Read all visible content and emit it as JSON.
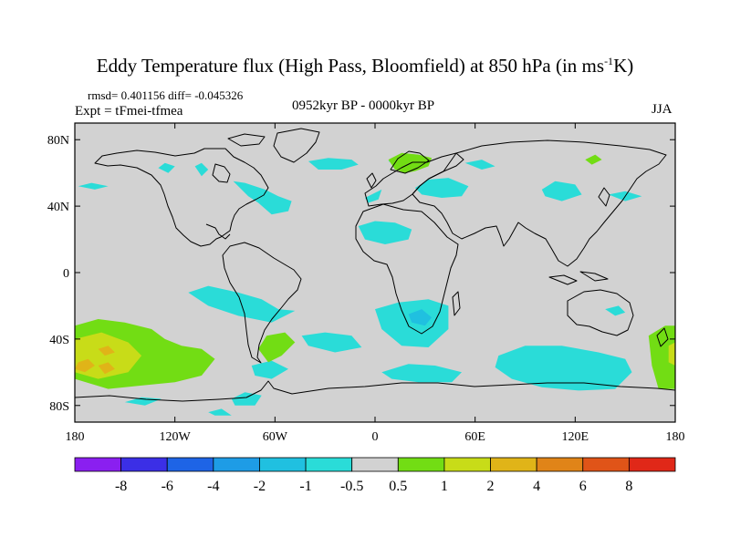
{
  "title": {
    "main_prefix": "Eddy Temperature flux (High Pass, Bloomfield) at 850 hPa (in ms",
    "superscript": "-1",
    "main_suffix": "K)"
  },
  "subtitle": {
    "stats": "rmsd= 0.401156 diff= -0.045326",
    "experiment": "Expt = tFmei-tfmea",
    "period": "0952kyr BP - 0000kyr BP",
    "season": "JJA"
  },
  "map": {
    "lon_range": [
      -180,
      180
    ],
    "lat_range": [
      -90,
      90
    ],
    "lat_ticks": [
      {
        "value": 80,
        "label": "80N"
      },
      {
        "value": 40,
        "label": "40N"
      },
      {
        "value": 0,
        "label": "0"
      },
      {
        "value": -40,
        "label": "40S"
      },
      {
        "value": -80,
        "label": "80S"
      }
    ],
    "lon_ticks": [
      {
        "value": -180,
        "label": "180"
      },
      {
        "value": -120,
        "label": "120W"
      },
      {
        "value": -60,
        "label": "60W"
      },
      {
        "value": 0,
        "label": "0"
      },
      {
        "value": 60,
        "label": "60E"
      },
      {
        "value": 120,
        "label": "120E"
      },
      {
        "value": 180,
        "label": "180"
      }
    ],
    "background_color": "#d2d2d2"
  },
  "colorbar": {
    "levels": [
      "-8",
      "-6",
      "-4",
      "-2",
      "-1",
      "-0.5",
      "0.5",
      "1",
      "2",
      "4",
      "6",
      "8"
    ],
    "colors": [
      "#8a1ff0",
      "#3b2fe6",
      "#1e64e6",
      "#1e9ce6",
      "#20c0e0",
      "#2adcd8",
      "#d2d2d2",
      "#72dd14",
      "#c8dc18",
      "#e0b418",
      "#e08418",
      "#e05418",
      "#e02818"
    ]
  },
  "regions": [
    {
      "level": "-1",
      "color": "#2adcd8",
      "pts": [
        [
          -178,
          52
        ],
        [
          -168,
          50
        ],
        [
          -160,
          52
        ],
        [
          -170,
          54
        ]
      ]
    },
    {
      "level": "-1",
      "color": "#2adcd8",
      "pts": [
        [
          -130,
          63
        ],
        [
          -124,
          60
        ],
        [
          -120,
          64
        ],
        [
          -126,
          66
        ]
      ]
    },
    {
      "level": "-1",
      "color": "#2adcd8",
      "pts": [
        [
          -108,
          64
        ],
        [
          -104,
          58
        ],
        [
          -100,
          62
        ],
        [
          -104,
          66
        ]
      ]
    },
    {
      "level": "-1",
      "color": "#2adcd8",
      "pts": [
        [
          -85,
          55
        ],
        [
          -76,
          46
        ],
        [
          -70,
          42
        ],
        [
          -62,
          35
        ],
        [
          -52,
          37
        ],
        [
          -50,
          43
        ],
        [
          -58,
          46
        ],
        [
          -66,
          50
        ],
        [
          -78,
          54
        ]
      ]
    },
    {
      "level": "-1",
      "color": "#2adcd8",
      "pts": [
        [
          -40,
          67
        ],
        [
          -28,
          69
        ],
        [
          -14,
          68
        ],
        [
          -10,
          65
        ],
        [
          -20,
          62
        ],
        [
          -34,
          62
        ]
      ]
    },
    {
      "level": "-1",
      "color": "#2adcd8",
      "pts": [
        [
          -6,
          45
        ],
        [
          0,
          48
        ],
        [
          4,
          50
        ],
        [
          2,
          44
        ],
        [
          -4,
          42
        ]
      ]
    },
    {
      "level": "-1",
      "color": "#2adcd8",
      "pts": [
        [
          -10,
          28
        ],
        [
          0,
          31
        ],
        [
          12,
          30
        ],
        [
          22,
          26
        ],
        [
          20,
          20
        ],
        [
          6,
          17
        ],
        [
          -6,
          20
        ]
      ]
    },
    {
      "level": "-1",
      "color": "#2adcd8",
      "pts": [
        [
          8,
          67
        ],
        [
          14,
          70
        ],
        [
          18,
          68
        ],
        [
          12,
          65
        ]
      ]
    },
    {
      "level": "-1",
      "color": "#2adcd8",
      "pts": [
        [
          24,
          51
        ],
        [
          32,
          56
        ],
        [
          44,
          57
        ],
        [
          56,
          52
        ],
        [
          52,
          46
        ],
        [
          40,
          45
        ],
        [
          28,
          47
        ]
      ]
    },
    {
      "level": "-1",
      "color": "#2adcd8",
      "pts": [
        [
          54,
          66
        ],
        [
          64,
          68
        ],
        [
          72,
          64
        ],
        [
          64,
          62
        ]
      ]
    },
    {
      "level": "-1",
      "color": "#2adcd8",
      "pts": [
        [
          100,
          50
        ],
        [
          108,
          55
        ],
        [
          120,
          53
        ],
        [
          124,
          47
        ],
        [
          112,
          43
        ],
        [
          102,
          46
        ]
      ]
    },
    {
      "level": "-1",
      "color": "#2adcd8",
      "pts": [
        [
          140,
          47
        ],
        [
          150,
          49
        ],
        [
          160,
          46
        ],
        [
          150,
          43
        ]
      ]
    },
    {
      "level": "-1",
      "color": "#2adcd8",
      "pts": [
        [
          -112,
          -12
        ],
        [
          -100,
          -8
        ],
        [
          -82,
          -12
        ],
        [
          -68,
          -16
        ],
        [
          -58,
          -22
        ],
        [
          -48,
          -23
        ],
        [
          -62,
          -30
        ],
        [
          -82,
          -26
        ],
        [
          -100,
          -20
        ]
      ]
    },
    {
      "level": "-1",
      "color": "#2adcd8",
      "pts": [
        [
          -44,
          -38
        ],
        [
          -30,
          -36
        ],
        [
          -14,
          -38
        ],
        [
          -8,
          -45
        ],
        [
          -24,
          -48
        ],
        [
          -40,
          -44
        ]
      ]
    },
    {
      "level": "-1",
      "color": "#2adcd8",
      "pts": [
        [
          0,
          -22
        ],
        [
          14,
          -18
        ],
        [
          32,
          -16
        ],
        [
          44,
          -20
        ],
        [
          44,
          -34
        ],
        [
          32,
          -45
        ],
        [
          16,
          -44
        ],
        [
          4,
          -34
        ]
      ]
    },
    {
      "level": "-1",
      "color": "#2adcd8",
      "pts": [
        [
          4,
          -60
        ],
        [
          20,
          -55
        ],
        [
          36,
          -56
        ],
        [
          52,
          -60
        ],
        [
          46,
          -66
        ],
        [
          26,
          -66
        ],
        [
          10,
          -64
        ]
      ]
    },
    {
      "level": "-1",
      "color": "#2adcd8",
      "pts": [
        [
          74,
          -50
        ],
        [
          90,
          -44
        ],
        [
          112,
          -44
        ],
        [
          134,
          -48
        ],
        [
          150,
          -52
        ],
        [
          154,
          -60
        ],
        [
          144,
          -70
        ],
        [
          122,
          -71
        ],
        [
          100,
          -69
        ],
        [
          82,
          -64
        ],
        [
          72,
          -57
        ]
      ]
    },
    {
      "level": "-1",
      "color": "#2adcd8",
      "pts": [
        [
          138,
          -22
        ],
        [
          146,
          -20
        ],
        [
          150,
          -24
        ],
        [
          144,
          -26
        ]
      ]
    },
    {
      "level": "-1",
      "color": "#2adcd8",
      "pts": [
        [
          -74,
          -56
        ],
        [
          -62,
          -53
        ],
        [
          -52,
          -58
        ],
        [
          -62,
          -64
        ],
        [
          -72,
          -62
        ]
      ]
    },
    {
      "level": "-1",
      "color": "#2adcd8",
      "pts": [
        [
          -86,
          -76
        ],
        [
          -78,
          -72
        ],
        [
          -68,
          -74
        ],
        [
          -72,
          -80
        ],
        [
          -84,
          -80
        ]
      ]
    },
    {
      "level": "-1",
      "color": "#2adcd8",
      "pts": [
        [
          -150,
          -78
        ],
        [
          -140,
          -75
        ],
        [
          -128,
          -76
        ],
        [
          -138,
          -80
        ]
      ]
    },
    {
      "level": "-1",
      "color": "#2adcd8",
      "pts": [
        [
          -100,
          -84
        ],
        [
          -92,
          -82
        ],
        [
          -86,
          -86
        ],
        [
          -96,
          -86
        ]
      ]
    },
    {
      "level": "-2",
      "color": "#20c0e0",
      "pts": [
        [
          20,
          -25
        ],
        [
          28,
          -22
        ],
        [
          34,
          -27
        ],
        [
          30,
          -32
        ],
        [
          22,
          -30
        ]
      ]
    },
    {
      "level": "1",
      "color": "#72dd14",
      "pts": [
        [
          8,
          68
        ],
        [
          16,
          72
        ],
        [
          26,
          71
        ],
        [
          34,
          69
        ],
        [
          32,
          64
        ],
        [
          24,
          61
        ],
        [
          18,
          60
        ],
        [
          12,
          62
        ]
      ]
    },
    {
      "level": "1",
      "color": "#72dd14",
      "pts": [
        [
          126,
          68
        ],
        [
          132,
          71
        ],
        [
          136,
          68
        ],
        [
          130,
          65
        ]
      ]
    },
    {
      "level": "1",
      "color": "#72dd14",
      "pts": [
        [
          -65,
          -38
        ],
        [
          -54,
          -36
        ],
        [
          -48,
          -42
        ],
        [
          -56,
          -50
        ],
        [
          -64,
          -54
        ],
        [
          -70,
          -46
        ]
      ]
    },
    {
      "level": "1",
      "color": "#72dd14",
      "pts": [
        [
          -180,
          -32
        ],
        [
          -166,
          -28
        ],
        [
          -150,
          -30
        ],
        [
          -134,
          -34
        ],
        [
          -126,
          -40
        ],
        [
          -116,
          -44
        ],
        [
          -104,
          -46
        ],
        [
          -96,
          -52
        ],
        [
          -104,
          -62
        ],
        [
          -120,
          -66
        ],
        [
          -140,
          -68
        ],
        [
          -160,
          -70
        ],
        [
          -180,
          -64
        ]
      ]
    },
    {
      "level": "1",
      "color": "#72dd14",
      "pts": [
        [
          164,
          -38
        ],
        [
          174,
          -32
        ],
        [
          180,
          -32
        ],
        [
          180,
          -70
        ],
        [
          170,
          -70
        ],
        [
          166,
          -56
        ]
      ]
    },
    {
      "level": "2",
      "color": "#c8dc18",
      "pts": [
        [
          -180,
          -40
        ],
        [
          -164,
          -36
        ],
        [
          -148,
          -42
        ],
        [
          -140,
          -50
        ],
        [
          -148,
          -60
        ],
        [
          -166,
          -64
        ],
        [
          -180,
          -60
        ]
      ]
    },
    {
      "level": "2",
      "color": "#c8dc18",
      "pts": [
        [
          176,
          -44
        ],
        [
          180,
          -42
        ],
        [
          180,
          -56
        ],
        [
          176,
          -54
        ]
      ]
    },
    {
      "level": "4",
      "color": "#e0b418",
      "pts": [
        [
          -178,
          -54
        ],
        [
          -172,
          -52
        ],
        [
          -168,
          -56
        ],
        [
          -174,
          -60
        ],
        [
          -180,
          -58
        ]
      ]
    },
    {
      "level": "4",
      "color": "#e0b418",
      "pts": [
        [
          -166,
          -56
        ],
        [
          -160,
          -54
        ],
        [
          -156,
          -58
        ],
        [
          -162,
          -61
        ]
      ]
    },
    {
      "level": "4",
      "color": "#e0b418",
      "pts": [
        [
          -166,
          -46
        ],
        [
          -160,
          -44
        ],
        [
          -156,
          -48
        ],
        [
          -162,
          -50
        ]
      ]
    }
  ]
}
